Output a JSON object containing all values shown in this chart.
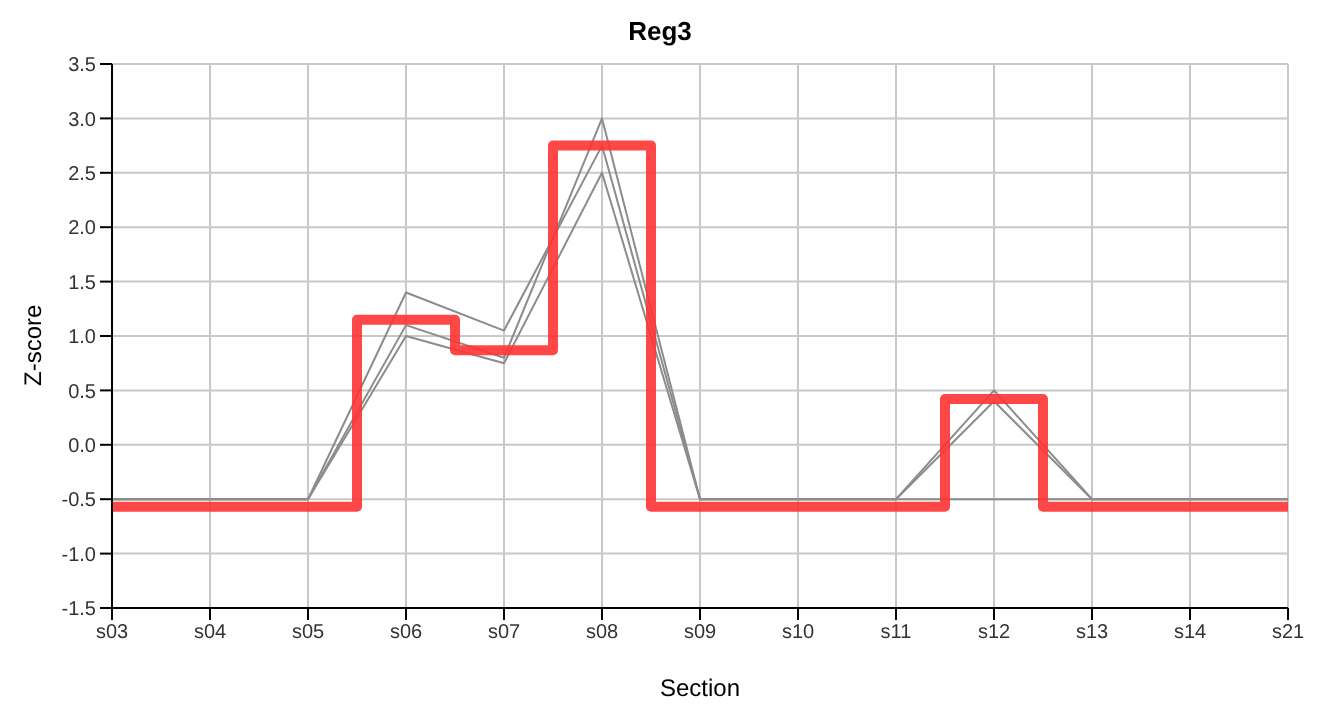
{
  "chart_data": {
    "type": "line",
    "title": "Reg3",
    "xlabel": "Section",
    "ylabel": "Z-score",
    "categories": [
      "s03",
      "s04",
      "s05",
      "s06",
      "s07",
      "s08",
      "s09",
      "s10",
      "s11",
      "s12",
      "s13",
      "s14",
      "s21"
    ],
    "ylim": [
      -1.5,
      3.5
    ],
    "yticks": [
      -1.5,
      {
        "value": -1,
        "label": "-1.0"
      },
      -0.5,
      {
        "value": 0,
        "label": "0.0"
      },
      0.5,
      {
        "value": 1,
        "label": "1.0"
      },
      1.5,
      {
        "value": 2,
        "label": "2.0"
      },
      2.5,
      {
        "value": 3,
        "label": "3.0"
      },
      3.5
    ],
    "grid": true,
    "legend": false,
    "marker": "none",
    "line_style": "solid",
    "series": [
      {
        "color": "#8c8c8c",
        "values": [
          -0.5,
          -0.5,
          -0.5,
          1.4,
          1.05,
          2.75,
          -0.5,
          -0.5,
          -0.5,
          0.5,
          -0.5,
          -0.5,
          -0.5
        ]
      },
      {
        "color": "#8c8c8c",
        "values": [
          -0.5,
          -0.5,
          -0.5,
          1.1,
          0.8,
          3.0,
          -0.5,
          -0.5,
          -0.5,
          0.4,
          -0.5,
          -0.5,
          -0.5
        ]
      },
      {
        "color": "#8c8c8c",
        "values": [
          -0.5,
          -0.5,
          -0.5,
          1.0,
          0.75,
          2.5,
          -0.5,
          -0.5,
          -0.5,
          -0.5,
          -0.5,
          -0.5,
          -0.5
        ]
      },
      {
        "type": "step",
        "color": "#ff3333",
        "values": [
          -0.57,
          -0.57,
          -0.57,
          1.15,
          0.87,
          2.75,
          -0.57,
          -0.57,
          -0.57,
          0.42,
          -0.57,
          -0.57,
          -0.57
        ]
      }
    ]
  }
}
